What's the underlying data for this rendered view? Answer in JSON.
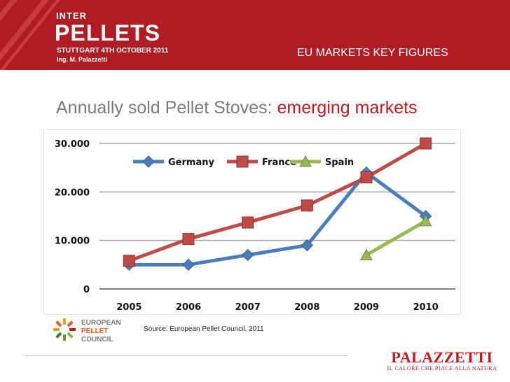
{
  "header": {
    "event_prefix": "INTER",
    "event_name": "PELLETS",
    "event_date": "STUTTGART 4TH OCTOBER 2011",
    "event_author": "Ing. M. Palazzetti",
    "section_title": "EU MARKETS KEY FIGURES"
  },
  "slide": {
    "title_main": "Annually sold Pellet Stoves: ",
    "title_highlight": "emerging markets"
  },
  "chart_data": {
    "type": "line",
    "title": "",
    "xlabel": "",
    "ylabel": "",
    "x": [
      "2005",
      "2006",
      "2007",
      "2008",
      "2009",
      "2010"
    ],
    "ylim": [
      0,
      30000
    ],
    "yticks": [
      "0",
      "10.000",
      "20.000",
      "30.000"
    ],
    "grid": true,
    "legend": "top",
    "series": [
      {
        "name": "Germany",
        "color": "#4a7ebb",
        "marker": "diamond",
        "values": [
          5000,
          5000,
          7000,
          9000,
          24000,
          15000
        ]
      },
      {
        "name": "France",
        "color": "#be4b48",
        "marker": "square",
        "values": [
          5800,
          10300,
          13700,
          17200,
          23000,
          30000
        ]
      },
      {
        "name": "Spain",
        "color": "#98b954",
        "marker": "triangle",
        "values": [
          null,
          null,
          null,
          null,
          7000,
          14000
        ]
      }
    ]
  },
  "footer": {
    "source": "Source: European Pellet  Council, 2011",
    "epc_line1": "EUROPEAN",
    "epc_line2": "PELLET",
    "epc_line3": "COUNCIL",
    "brand": "PALAZZETTI",
    "brand_tagline": "IL CALORE CHE PIACE ALLA NATURA"
  },
  "colors": {
    "header_red": "#b01c24",
    "title_gray": "#7a7a7a",
    "highlight_red": "#c4171d"
  }
}
